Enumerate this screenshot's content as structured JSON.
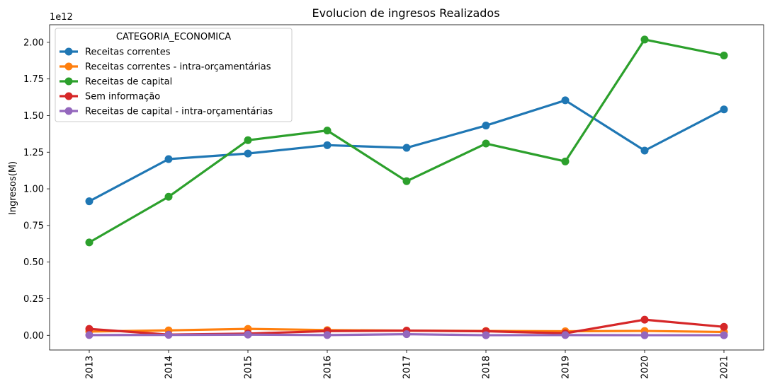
{
  "chart_data": {
    "type": "line",
    "title": "Evolucion de ingresos Realizados",
    "xlabel": "",
    "ylabel": "Ingresos(M)",
    "y_offset_label": "1e12",
    "y_scale": 1000000000000.0,
    "ylim": [
      -0.1,
      2.12
    ],
    "yticks": [
      0.0,
      0.25,
      0.5,
      0.75,
      1.0,
      1.25,
      1.5,
      1.75,
      2.0
    ],
    "ytick_labels": [
      "0.00",
      "0.25",
      "0.50",
      "0.75",
      "1.00",
      "1.25",
      "1.50",
      "1.75",
      "2.00"
    ],
    "categories": [
      "2013",
      "2014",
      "2015",
      "2016",
      "2017",
      "2018",
      "2019",
      "2020",
      "2021"
    ],
    "legend": {
      "title": "CATEGORIA_ECONOMICA",
      "placement": "upper-left"
    },
    "grid": false,
    "series": [
      {
        "name": "Receitas correntes",
        "color": "#1f77b4",
        "values": [
          0.915,
          1.203,
          1.241,
          1.298,
          1.28,
          1.432,
          1.604,
          1.261,
          1.542
        ]
      },
      {
        "name": "Receitas correntes - intra-orçamentárias",
        "color": "#ff7f0e",
        "values": [
          0.026,
          0.034,
          0.044,
          0.036,
          0.032,
          0.03,
          0.028,
          0.03,
          0.023
        ]
      },
      {
        "name": "Receitas de capital",
        "color": "#2ca02c",
        "values": [
          0.634,
          0.946,
          1.332,
          1.398,
          1.052,
          1.309,
          1.187,
          2.019,
          1.91
        ]
      },
      {
        "name": "Sem informação",
        "color": "#d62728",
        "values": [
          0.044,
          0.005,
          0.012,
          0.029,
          0.032,
          0.028,
          0.014,
          0.107,
          0.058
        ]
      },
      {
        "name": "Receitas de capital - intra-orçamentárias",
        "color": "#9467bd",
        "values": [
          0.002,
          0.003,
          0.005,
          0.002,
          0.008,
          0.001,
          0.002,
          0.001,
          0.001
        ]
      }
    ]
  }
}
